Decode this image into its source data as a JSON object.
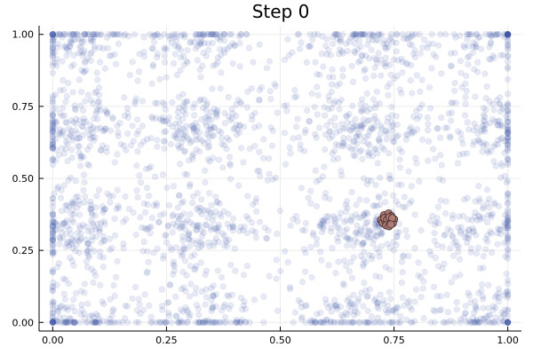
{
  "chart_data": {
    "type": "scatter",
    "title": "Step 0",
    "xlabel": "",
    "ylabel": "",
    "xlim": [
      -0.03,
      1.03
    ],
    "ylim": [
      -0.03,
      1.03
    ],
    "grid": true,
    "legend": "none",
    "x_ticks": [
      {
        "value": 0.0,
        "label": "0.00"
      },
      {
        "value": 0.25,
        "label": "0.25"
      },
      {
        "value": 0.5,
        "label": "0.50"
      },
      {
        "value": 0.75,
        "label": "0.75"
      },
      {
        "value": 1.0,
        "label": "1.00"
      }
    ],
    "y_ticks": [
      {
        "value": 0.0,
        "label": "0.00"
      },
      {
        "value": 0.25,
        "label": "0.25"
      },
      {
        "value": 0.5,
        "label": "0.50"
      },
      {
        "value": 0.75,
        "label": "0.75"
      },
      {
        "value": 1.0,
        "label": "1.00"
      }
    ],
    "series": [
      {
        "kind": "background-distribution",
        "color": "#3b54a3",
        "opacity": 0.12,
        "clusters": [
          {
            "cx": 0.05,
            "cy": 0.98,
            "weight": 0.8
          },
          {
            "cx": 0.32,
            "cy": 0.98,
            "weight": 0.7
          },
          {
            "cx": 0.68,
            "cy": 0.98,
            "weight": 0.8
          },
          {
            "cx": 0.96,
            "cy": 0.98,
            "weight": 0.6
          },
          {
            "cx": 0.05,
            "cy": 0.67,
            "weight": 1.0
          },
          {
            "cx": 0.32,
            "cy": 0.67,
            "weight": 1.0
          },
          {
            "cx": 0.68,
            "cy": 0.67,
            "weight": 1.0
          },
          {
            "cx": 0.96,
            "cy": 0.67,
            "weight": 0.8
          },
          {
            "cx": 0.05,
            "cy": 0.33,
            "weight": 1.0
          },
          {
            "cx": 0.32,
            "cy": 0.33,
            "weight": 1.0
          },
          {
            "cx": 0.68,
            "cy": 0.33,
            "weight": 1.0
          },
          {
            "cx": 0.96,
            "cy": 0.33,
            "weight": 0.8
          },
          {
            "cx": 0.05,
            "cy": 0.02,
            "weight": 0.8
          },
          {
            "cx": 0.32,
            "cy": 0.02,
            "weight": 0.7
          },
          {
            "cx": 0.68,
            "cy": 0.02,
            "weight": 0.8
          },
          {
            "cx": 0.96,
            "cy": 0.02,
            "weight": 0.6
          }
        ]
      },
      {
        "kind": "highlighted-particles",
        "color": "#b07a74",
        "stroke": "#3a2a2a",
        "x": [
          0.722,
          0.728,
          0.733,
          0.738,
          0.744,
          0.75,
          0.725,
          0.731,
          0.736,
          0.742,
          0.747,
          0.729,
          0.735,
          0.74,
          0.746,
          0.733,
          0.739,
          0.743
        ],
        "y": [
          0.356,
          0.372,
          0.364,
          0.378,
          0.369,
          0.358,
          0.346,
          0.352,
          0.342,
          0.35,
          0.344,
          0.362,
          0.357,
          0.365,
          0.362,
          0.337,
          0.334,
          0.34
        ]
      }
    ]
  }
}
